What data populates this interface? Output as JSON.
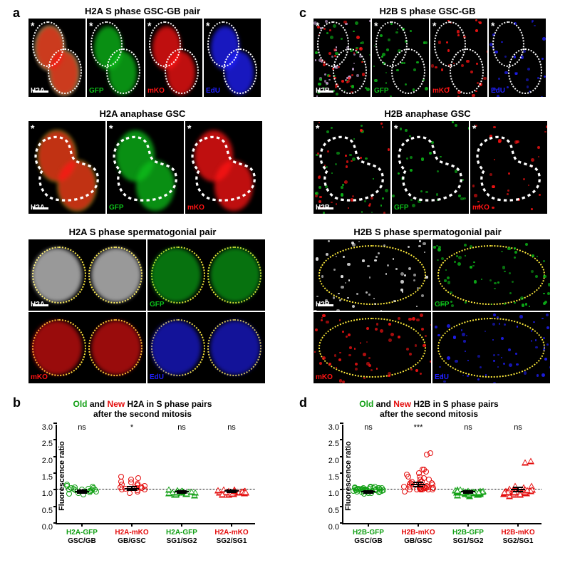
{
  "panel_labels": {
    "a": "a",
    "b": "b",
    "c": "c",
    "d": "d"
  },
  "sec_a": {
    "row1_title": "H2A S phase GSC-GB pair",
    "row1_labels": {
      "merged": "H2A",
      "gfp": "GFP",
      "mko": "mKO",
      "edu": "EdU"
    },
    "row2_title": "H2A anaphase GSC",
    "row2_labels": {
      "merged": "H2A",
      "gfp": "GFP",
      "mko": "mKO"
    },
    "row3_title": "H2A S phase spermatogonial pair",
    "row3_labels": {
      "merged": "H2A",
      "gfp": "GFP",
      "mko": "mKO",
      "edu": "EdU"
    }
  },
  "sec_c": {
    "row1_title": "H2B S phase GSC-GB",
    "row1_labels": {
      "merged": "H2B",
      "gfp": "GFP",
      "mko": "mKO",
      "edu": "EdU"
    },
    "row2_title": "H2B anaphase GSC",
    "row2_labels": {
      "merged": "H2B",
      "gfp": "GFP",
      "mko": "mKO"
    },
    "row3_title": "H2B S phase spermatogonial pair",
    "row3_labels": {
      "merged": "H2B",
      "gfp": "GFP",
      "mko": "mKO",
      "edu": "EdU"
    }
  },
  "colors": {
    "green": "#0dbf1a",
    "red": "#ff1414",
    "blue": "#2020ff",
    "white": "#ffffff",
    "merged_overlay": "#d6b3e6",
    "yellow": "#ffeb3b",
    "black": "#000000",
    "plot_green": "#13a016",
    "plot_red": "#e40d0d"
  },
  "chart_b": {
    "title_pref": "Old",
    "title_mid": " and ",
    "title_new": "New",
    "title_after": " H2A in S phase pairs",
    "title_line2": "after the second mitosis",
    "ylabel": "Fluorescence ratio",
    "ylim": [
      0,
      3.0
    ],
    "yticks": [
      0,
      0.5,
      1.0,
      1.5,
      2.0,
      2.5,
      3.0
    ],
    "ref_line": 1.0,
    "groups": [
      {
        "top": "H2A-GFP",
        "bot": "GSC/GB",
        "color": "plot_green",
        "marker": "circle",
        "sig": "ns",
        "mean": 1.0,
        "sem": 0.04,
        "vals": [
          0.98,
          1.02,
          0.95,
          1.1,
          0.88,
          1.06,
          1.0,
          0.92,
          1.12,
          0.97,
          1.03,
          0.9,
          1.08,
          1.0,
          0.96,
          1.15,
          0.85,
          1.05,
          0.99,
          1.01
        ]
      },
      {
        "top": "H2A-mKO",
        "bot": "GB/GSC",
        "color": "plot_red",
        "marker": "circle",
        "sig": "*",
        "mean": 1.1,
        "sem": 0.06,
        "vals": [
          1.05,
          1.12,
          1.0,
          1.22,
          0.95,
          1.18,
          1.3,
          1.08,
          1.02,
          1.4,
          0.9,
          1.15,
          1.1,
          1.06,
          1.25,
          1.0,
          1.35,
          0.98,
          1.14,
          1.07
        ]
      },
      {
        "top": "H2A-GFP",
        "bot": "SG1/SG2",
        "color": "plot_green",
        "marker": "tri",
        "sig": "ns",
        "mean": 1.0,
        "sem": 0.03,
        "vals": [
          1.0,
          0.98,
          1.02,
          0.96,
          1.04,
          1.01,
          0.99,
          0.94,
          1.08,
          1.0,
          0.97,
          1.03,
          0.92,
          1.06,
          1.0,
          0.98,
          1.02,
          0.95,
          1.1,
          1.0
        ]
      },
      {
        "top": "H2A-mKO",
        "bot": "SG2/SG1",
        "color": "plot_red",
        "marker": "tri",
        "sig": "ns",
        "mean": 1.02,
        "sem": 0.03,
        "vals": [
          1.0,
          1.04,
          0.98,
          1.06,
          0.96,
          1.02,
          1.1,
          0.94,
          1.0,
          1.08,
          1.0,
          1.03,
          0.97,
          1.05,
          0.99,
          1.01,
          1.1,
          0.95,
          1.04,
          1.0
        ]
      }
    ]
  },
  "chart_d": {
    "title_pref": "Old",
    "title_mid": " and ",
    "title_new": "New",
    "title_after": " H2B in S phase pairs",
    "title_line2": "after the second mitosis",
    "ylabel": "Fluorescence ratio",
    "ylim": [
      0,
      3.0
    ],
    "yticks": [
      0,
      0.5,
      1.0,
      1.5,
      2.0,
      2.5,
      3.0
    ],
    "ref_line": 1.0,
    "groups": [
      {
        "top": "H2B-GFP",
        "bot": "GSC/GB",
        "color": "plot_green",
        "marker": "circle",
        "sig": "ns",
        "mean": 1.0,
        "sem": 0.03,
        "vals": [
          0.97,
          1.02,
          0.95,
          1.05,
          0.9,
          1.08,
          1.0,
          0.98,
          1.04,
          0.93,
          1.06,
          0.88,
          1.1,
          1.0,
          0.96,
          1.03,
          0.99,
          1.01,
          0.94,
          1.07,
          0.92,
          1.0,
          1.05,
          0.97,
          1.0,
          0.99,
          1.02,
          0.98,
          1.0,
          1.01,
          1.0,
          0.96,
          1.04,
          0.9,
          1.1,
          0.95,
          1.05,
          1.0,
          1.02,
          0.98
        ]
      },
      {
        "top": "H2B-mKO",
        "bot": "GB/GSC",
        "color": "plot_red",
        "marker": "circle",
        "sig": "***",
        "mean": 1.22,
        "sem": 0.07,
        "vals": [
          1.1,
          1.25,
          1.05,
          1.4,
          1.0,
          1.3,
          1.15,
          1.08,
          1.55,
          1.2,
          1.02,
          1.6,
          0.95,
          1.12,
          1.45,
          2.05,
          1.0,
          1.18,
          2.1,
          1.06,
          1.35,
          1.0,
          1.25,
          1.1,
          1.5,
          1.0,
          1.2,
          1.4,
          1.0,
          1.15,
          1.05,
          1.3,
          1.1,
          1.0,
          1.6,
          1.0,
          1.25,
          1.05,
          1.2,
          1.1
        ]
      },
      {
        "top": "H2B-GFP",
        "bot": "SG1/SG2",
        "color": "plot_green",
        "marker": "tri",
        "sig": "ns",
        "mean": 1.0,
        "sem": 0.03,
        "vals": [
          0.98,
          1.0,
          0.96,
          1.04,
          1.02,
          0.94,
          1.06,
          1.0,
          0.99,
          1.03,
          0.97,
          1.0,
          1.08,
          0.92,
          1.0,
          1.05,
          0.95,
          1.0,
          1.01,
          0.99,
          1.0,
          0.98,
          1.02,
          1.0,
          0.96,
          1.04,
          1.0,
          0.9,
          1.1,
          1.0,
          1.1,
          0.95,
          1.0,
          1.05,
          1.0,
          0.98,
          1.02,
          1.0,
          1.0,
          1.0
        ]
      },
      {
        "top": "H2B-mKO",
        "bot": "SG2/SG1",
        "color": "plot_red",
        "marker": "tri",
        "sig": "ns",
        "mean": 1.07,
        "sem": 0.06,
        "vals": [
          1.0,
          1.08,
          0.96,
          1.15,
          1.0,
          1.2,
          0.94,
          1.05,
          1.12,
          1.0,
          1.95,
          1.03,
          0.98,
          1.1,
          1.06,
          0.9,
          1.0,
          1.9,
          1.0,
          1.04,
          1.0,
          1.1,
          1.0,
          0.95,
          1.05,
          1.0,
          1.2,
          1.0,
          1.0,
          1.1,
          1.0,
          0.98,
          1.02,
          1.0,
          1.05,
          1.0,
          1.0,
          1.08,
          1.0,
          1.0
        ]
      }
    ]
  },
  "fontsize": {
    "panel_label": 18,
    "row_title": 13,
    "corner": 10,
    "axis": 11,
    "cat": 10
  }
}
